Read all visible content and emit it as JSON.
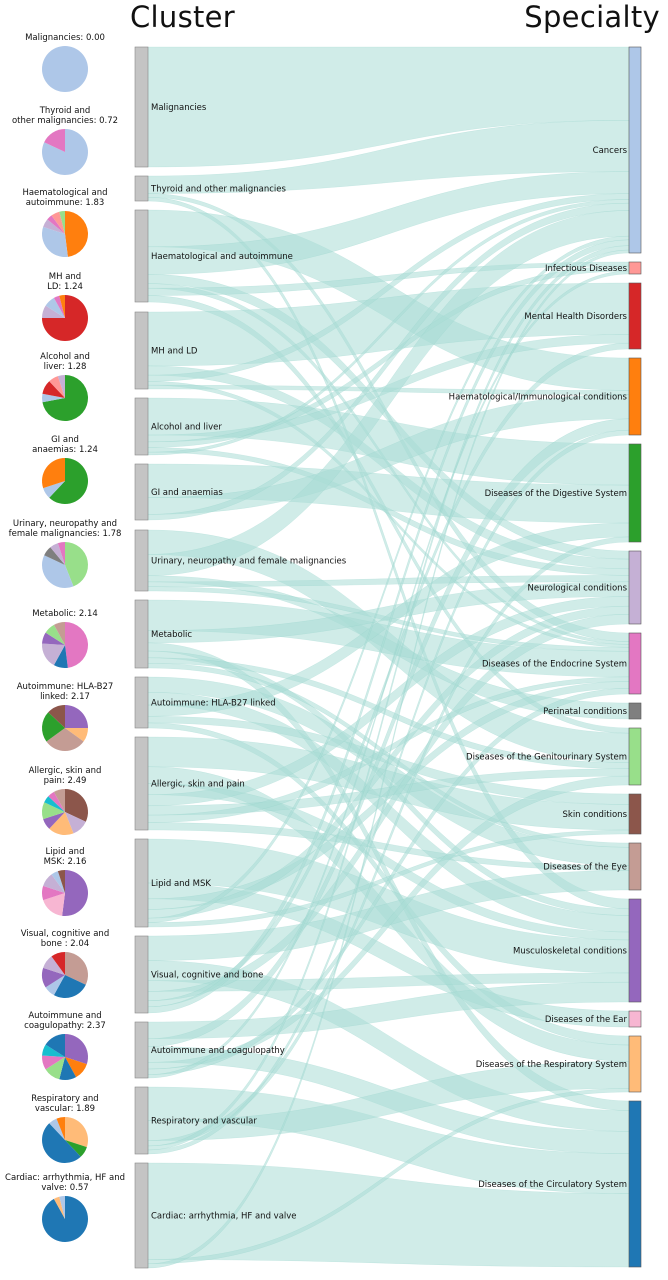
{
  "headers": {
    "cluster": "Cluster",
    "specialty": "Specialty"
  },
  "colors": {
    "flow": "#a9dcd6",
    "flow_highlight": "#8ccfc6",
    "cluster_bar": "#c4c4c4"
  },
  "clusters": [
    {
      "name": "Malignancies",
      "pie_label": [
        "Malignancies: 0.00"
      ],
      "slices": [
        [
          "#aec7e8",
          100
        ]
      ]
    },
    {
      "name": "Thyroid and other malignancies",
      "pie_label": [
        "Thyroid and",
        "other malignancies: 0.72"
      ],
      "slices": [
        [
          "#aec7e8",
          82
        ],
        [
          "#e377c2",
          18
        ]
      ]
    },
    {
      "name": "Haematological and autoimmune",
      "pie_label": [
        "Haematological and",
        "autoimmune: 1.83"
      ],
      "slices": [
        [
          "#ff7f0e",
          48
        ],
        [
          "#aec7e8",
          32
        ],
        [
          "#c5b0d5",
          6
        ],
        [
          "#e377c2",
          4
        ],
        [
          "#ff9896",
          6
        ],
        [
          "#98df8a",
          4
        ]
      ]
    },
    {
      "name": "MH and LD",
      "pie_label": [
        "MH and",
        "LD: 1.24"
      ],
      "slices": [
        [
          "#d62728",
          75
        ],
        [
          "#c5b0d5",
          9
        ],
        [
          "#aec7e8",
          8
        ],
        [
          "#e377c2",
          4
        ],
        [
          "#ff7f0e",
          4
        ]
      ]
    },
    {
      "name": "Alcohol and liver",
      "pie_label": [
        "Alcohol and",
        "liver: 1.28"
      ],
      "slices": [
        [
          "#2ca02c",
          72
        ],
        [
          "#aec7e8",
          6
        ],
        [
          "#d62728",
          10
        ],
        [
          "#ff9896",
          7
        ],
        [
          "#c5b0d5",
          5
        ]
      ]
    },
    {
      "name": "GI and anaemias",
      "pie_label": [
        "GI and",
        "anaemias: 1.24"
      ],
      "slices": [
        [
          "#2ca02c",
          62
        ],
        [
          "#aec7e8",
          8
        ],
        [
          "#ff7f0e",
          30
        ]
      ]
    },
    {
      "name": "Urinary, neuropathy and female malignancies",
      "pie_label": [
        "Urinary, neuropathy and",
        "female malignancies: 1.78"
      ],
      "slices": [
        [
          "#98df8a",
          44
        ],
        [
          "#aec7e8",
          38
        ],
        [
          "#7f7f7f",
          7
        ],
        [
          "#c5b0d5",
          6
        ],
        [
          "#e377c2",
          5
        ]
      ]
    },
    {
      "name": "Metabolic",
      "pie_label": [
        "Metabolic: 2.14"
      ],
      "slices": [
        [
          "#e377c2",
          48
        ],
        [
          "#1f77b4",
          10
        ],
        [
          "#c5b0d5",
          18
        ],
        [
          "#9467bd",
          8
        ],
        [
          "#98df8a",
          8
        ],
        [
          "#c49c94",
          8
        ]
      ]
    },
    {
      "name": "Autoimmune: HLA-B27 linked",
      "pie_label": [
        "Autoimmune: HLA-B27",
        "linked: 2.17"
      ],
      "slices": [
        [
          "#9467bd",
          25
        ],
        [
          "#ffbb78",
          10
        ],
        [
          "#c49c94",
          30
        ],
        [
          "#2ca02c",
          22
        ],
        [
          "#8c564b",
          13
        ]
      ]
    },
    {
      "name": "Allergic, skin and pain",
      "pie_label": [
        "Allergic, skin and",
        "pain: 2.49"
      ],
      "slices": [
        [
          "#8c564b",
          32
        ],
        [
          "#c5b0d5",
          12
        ],
        [
          "#ffbb78",
          18
        ],
        [
          "#9467bd",
          8
        ],
        [
          "#98df8a",
          12
        ],
        [
          "#17becf",
          5
        ],
        [
          "#e377c2",
          5
        ],
        [
          "#c49c94",
          8
        ]
      ]
    },
    {
      "name": "Lipid and MSK",
      "pie_label": [
        "Lipid and",
        "MSK: 2.16"
      ],
      "slices": [
        [
          "#9467bd",
          52
        ],
        [
          "#f7b6d2",
          18
        ],
        [
          "#e377c2",
          10
        ],
        [
          "#c5b0d5",
          10
        ],
        [
          "#aec7e8",
          5
        ],
        [
          "#8c564b",
          5
        ]
      ]
    },
    {
      "name": "Visual, cognitive and bone",
      "pie_label": [
        "Visual, cognitive and",
        "bone : 2.04"
      ],
      "slices": [
        [
          "#c49c94",
          32
        ],
        [
          "#1f77b4",
          26
        ],
        [
          "#aec7e8",
          8
        ],
        [
          "#9467bd",
          14
        ],
        [
          "#c5b0d5",
          10
        ],
        [
          "#d62728",
          10
        ]
      ]
    },
    {
      "name": "Autoimmune and coagulopathy",
      "pie_label": [
        "Autoimmune and",
        "coagulopathy: 2.37"
      ],
      "slices": [
        [
          "#9467bd",
          30
        ],
        [
          "#ff7f0e",
          12
        ],
        [
          "#1f77b4",
          12
        ],
        [
          "#98df8a",
          12
        ],
        [
          "#e377c2",
          10
        ],
        [
          "#17becf",
          8
        ],
        [
          "#1f77b4",
          16
        ]
      ]
    },
    {
      "name": "Respiratory and vascular",
      "pie_label": [
        "Respiratory and",
        "vascular: 1.89"
      ],
      "slices": [
        [
          "#ffbb78",
          30
        ],
        [
          "#2ca02c",
          8
        ],
        [
          "#1f77b4",
          50
        ],
        [
          "#aec7e8",
          6
        ],
        [
          "#ff7f0e",
          6
        ]
      ]
    },
    {
      "name": "Cardiac: arrhythmia, HF and valve",
      "pie_label": [
        "Cardiac: arrhythmia, HF and",
        "valve: 0.57"
      ],
      "slices": [
        [
          "#1f77b4",
          92
        ],
        [
          "#ffbb78",
          4
        ],
        [
          "#aec7e8",
          4
        ]
      ]
    }
  ],
  "specialties": [
    {
      "name": "Cancers",
      "color": "#aec7e8"
    },
    {
      "name": "Infectious Diseases",
      "color": "#ff9896"
    },
    {
      "name": "Mental Health Disorders",
      "color": "#d62728"
    },
    {
      "name": "Haematological/Immunological conditions",
      "color": "#ff7f0e"
    },
    {
      "name": "Diseases of the Digestive System",
      "color": "#2ca02c"
    },
    {
      "name": "Neurological conditions",
      "color": "#c5b0d5"
    },
    {
      "name": "Diseases of the Endocrine System",
      "color": "#e377c2"
    },
    {
      "name": "Perinatal conditions",
      "color": "#7f7f7f"
    },
    {
      "name": "Diseases of the Genitourinary System",
      "color": "#98df8a"
    },
    {
      "name": "Skin conditions",
      "color": "#8c564b"
    },
    {
      "name": "Diseases of the Eye",
      "color": "#c49c94"
    },
    {
      "name": "Musculoskeletal conditions",
      "color": "#9467bd"
    },
    {
      "name": "Diseases of the Ear",
      "color": "#f7b6d2"
    },
    {
      "name": "Diseases of the Respiratory System",
      "color": "#ffbb78"
    },
    {
      "name": "Diseases of the Circulatory System",
      "color": "#1f77b4"
    }
  ]
}
